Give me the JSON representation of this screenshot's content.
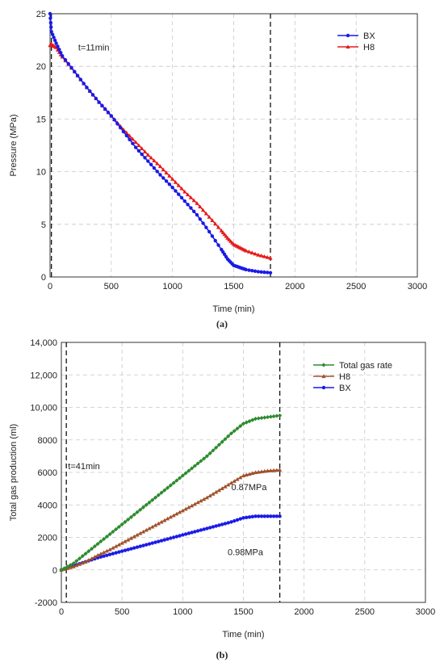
{
  "chart_data": [
    {
      "type": "line",
      "panel_label": "(a)",
      "xlabel": "Time (min)",
      "ylabel": "Pressure (MPa)",
      "xlim": [
        0,
        3000
      ],
      "ylim": [
        0,
        25
      ],
      "xticks": [
        "0",
        "500",
        "1000",
        "1500",
        "2000",
        "2500",
        "3000"
      ],
      "yticks": [
        "0",
        "5",
        "10",
        "15",
        "20",
        "25"
      ],
      "grid": true,
      "legend_position": "top-right",
      "vlines": [
        11,
        1800
      ],
      "annotations": [
        {
          "text": "t=11min",
          "x": 230,
          "y": 21.5
        }
      ],
      "series": [
        {
          "name": "BX",
          "color": "#1a1ae6",
          "marker": "circle",
          "x": [
            0,
            11,
            50,
            100,
            200,
            300,
            400,
            500,
            600,
            700,
            800,
            900,
            1000,
            1100,
            1200,
            1300,
            1400,
            1450,
            1500,
            1550,
            1600,
            1700,
            1800
          ],
          "y": [
            25.0,
            23.3,
            22.2,
            21.0,
            19.5,
            18.0,
            16.6,
            15.3,
            13.8,
            12.3,
            11.0,
            9.7,
            8.5,
            7.2,
            5.9,
            4.3,
            2.6,
            1.7,
            1.1,
            0.9,
            0.7,
            0.5,
            0.4
          ]
        },
        {
          "name": "H8",
          "color": "#e61a1a",
          "marker": "triangle",
          "x": [
            0,
            11,
            50,
            100,
            200,
            300,
            400,
            500,
            600,
            700,
            800,
            900,
            1000,
            1100,
            1200,
            1300,
            1400,
            1450,
            1500,
            1550,
            1600,
            1700,
            1800
          ],
          "y": [
            22.0,
            22.1,
            21.8,
            20.9,
            19.5,
            18.0,
            16.6,
            15.3,
            14.0,
            12.8,
            11.6,
            10.5,
            9.3,
            8.1,
            7.0,
            5.7,
            4.4,
            3.7,
            3.1,
            2.8,
            2.5,
            2.1,
            1.8
          ]
        }
      ]
    },
    {
      "type": "line",
      "panel_label": "(b)",
      "xlabel": "Time (min)",
      "ylabel": "Total gas production (ml)",
      "xlim": [
        0,
        3000
      ],
      "ylim": [
        -2000,
        14000
      ],
      "xticks": [
        "0",
        "500",
        "1000",
        "1500",
        "2000",
        "2500",
        "3000"
      ],
      "yticks": [
        "-2000",
        "0",
        "2000",
        "4000",
        "6000",
        "8000",
        "10,000",
        "12,000",
        "14,000"
      ],
      "grid": true,
      "legend_position": "top-right",
      "vlines": [
        41,
        1800
      ],
      "annotations": [
        {
          "text": "t=41min",
          "x": 55,
          "y": 6200
        },
        {
          "text": "0.87MPa",
          "x": 1400,
          "y": 4900
        },
        {
          "text": "0.98MPa",
          "x": 1370,
          "y": 900
        }
      ],
      "series": [
        {
          "name": "Total gas rate",
          "color": "#2e8b2e",
          "marker": "diamond",
          "x": [
            0,
            100,
            200,
            300,
            400,
            500,
            600,
            700,
            800,
            900,
            1000,
            1100,
            1200,
            1300,
            1400,
            1500,
            1600,
            1700,
            1800
          ],
          "y": [
            0,
            400,
            1000,
            1600,
            2200,
            2800,
            3400,
            4000,
            4600,
            5200,
            5800,
            6400,
            7000,
            7700,
            8400,
            9000,
            9300,
            9400,
            9500
          ]
        },
        {
          "name": "H8",
          "color": "#a0522d",
          "marker": "triangle",
          "x": [
            0,
            100,
            200,
            300,
            400,
            500,
            600,
            700,
            800,
            900,
            1000,
            1100,
            1200,
            1300,
            1400,
            1500,
            1600,
            1700,
            1800
          ],
          "y": [
            0,
            200,
            500,
            900,
            1250,
            1650,
            2050,
            2450,
            2850,
            3250,
            3650,
            4050,
            4450,
            4900,
            5350,
            5800,
            6000,
            6100,
            6150
          ]
        },
        {
          "name": "BX",
          "color": "#1a1ae6",
          "marker": "circle",
          "x": [
            0,
            100,
            200,
            300,
            400,
            500,
            600,
            700,
            800,
            900,
            1000,
            1100,
            1200,
            1300,
            1400,
            1500,
            1600,
            1700,
            1800
          ],
          "y": [
            0,
            250,
            500,
            750,
            950,
            1150,
            1350,
            1550,
            1750,
            1950,
            2150,
            2350,
            2550,
            2750,
            2950,
            3200,
            3300,
            3300,
            3300
          ]
        }
      ]
    }
  ]
}
